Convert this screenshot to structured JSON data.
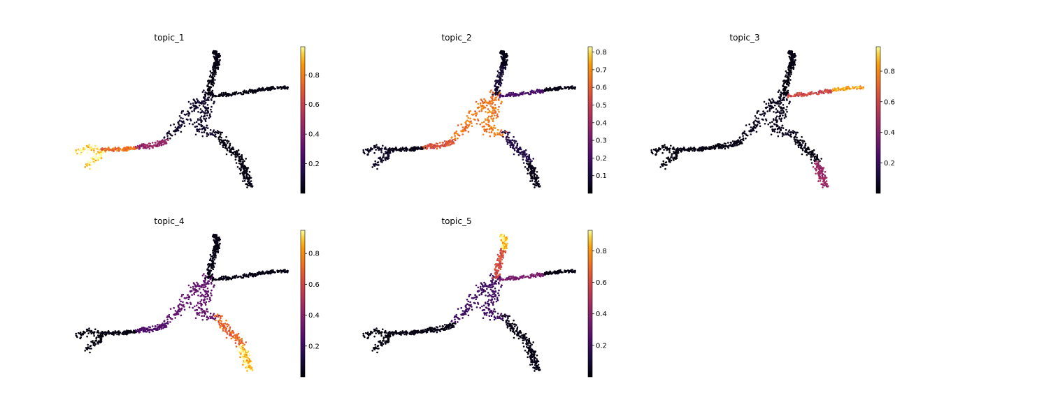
{
  "chart_data": [
    {
      "type": "scatter",
      "title": "topic_1",
      "colormap": "inferno",
      "colorbar": {
        "vmin": 0.0,
        "vmax": 0.99,
        "ticks": [
          "0.2",
          "0.4",
          "0.6",
          "0.8"
        ]
      },
      "axes_visible": false,
      "grid": false,
      "hotspots": [
        {
          "branch": "left-arm-tip",
          "value": 0.97
        },
        {
          "branch": "left-arm-mid",
          "value": 0.75
        },
        {
          "branch": "left-arm-base",
          "value": 0.45
        },
        {
          "branch": "center",
          "value": 0.08
        },
        {
          "branch": "top-arm",
          "value": 0.02
        },
        {
          "branch": "right-arm",
          "value": 0.02
        },
        {
          "branch": "lower-right-arm",
          "value": 0.03
        }
      ]
    },
    {
      "type": "scatter",
      "title": "topic_2",
      "colormap": "inferno",
      "colorbar": {
        "vmin": 0.0,
        "vmax": 0.83,
        "ticks": [
          "0.1",
          "0.2",
          "0.3",
          "0.4",
          "0.5",
          "0.6",
          "0.7",
          "0.8"
        ]
      },
      "axes_visible": false,
      "grid": false,
      "hotspots": [
        {
          "branch": "center",
          "value": 0.65
        },
        {
          "branch": "left-arm-base",
          "value": 0.55
        },
        {
          "branch": "left-arm-tip",
          "value": 0.05
        },
        {
          "branch": "top-arm",
          "value": 0.08
        },
        {
          "branch": "right-arm",
          "value": 0.2
        },
        {
          "branch": "lower-right-arm",
          "value": 0.12
        }
      ]
    },
    {
      "type": "scatter",
      "title": "topic_3",
      "colormap": "inferno",
      "colorbar": {
        "vmin": 0.0,
        "vmax": 0.96,
        "ticks": [
          "0.2",
          "0.4",
          "0.6",
          "0.8"
        ]
      },
      "axes_visible": false,
      "grid": false,
      "hotspots": [
        {
          "branch": "right-arm-tip",
          "value": 0.85
        },
        {
          "branch": "right-arm",
          "value": 0.6
        },
        {
          "branch": "lower-right-arm-tip",
          "value": 0.45
        },
        {
          "branch": "center",
          "value": 0.05
        },
        {
          "branch": "top-arm",
          "value": 0.02
        },
        {
          "branch": "left-arm-tip",
          "value": 0.02
        }
      ]
    },
    {
      "type": "scatter",
      "title": "topic_4",
      "colormap": "inferno",
      "colorbar": {
        "vmin": 0.0,
        "vmax": 0.95,
        "ticks": [
          "0.2",
          "0.4",
          "0.6",
          "0.8"
        ]
      },
      "axes_visible": false,
      "grid": false,
      "hotspots": [
        {
          "branch": "lower-right-arm-tip",
          "value": 0.9
        },
        {
          "branch": "lower-right-arm",
          "value": 0.7
        },
        {
          "branch": "center",
          "value": 0.3
        },
        {
          "branch": "left-arm-base",
          "value": 0.25
        },
        {
          "branch": "top-arm",
          "value": 0.03
        },
        {
          "branch": "right-arm",
          "value": 0.03
        },
        {
          "branch": "left-arm-tip",
          "value": 0.02
        }
      ]
    },
    {
      "type": "scatter",
      "title": "topic_5",
      "colormap": "inferno",
      "colorbar": {
        "vmin": 0.0,
        "vmax": 0.93,
        "ticks": [
          "0.2",
          "0.4",
          "0.6",
          "0.8"
        ]
      },
      "axes_visible": false,
      "grid": false,
      "hotspots": [
        {
          "branch": "top-arm-tip",
          "value": 0.88
        },
        {
          "branch": "top-arm",
          "value": 0.6
        },
        {
          "branch": "right-arm",
          "value": 0.35
        },
        {
          "branch": "center",
          "value": 0.2
        },
        {
          "branch": "left-arm-tip",
          "value": 0.02
        },
        {
          "branch": "lower-right-arm",
          "value": 0.03
        }
      ]
    }
  ]
}
